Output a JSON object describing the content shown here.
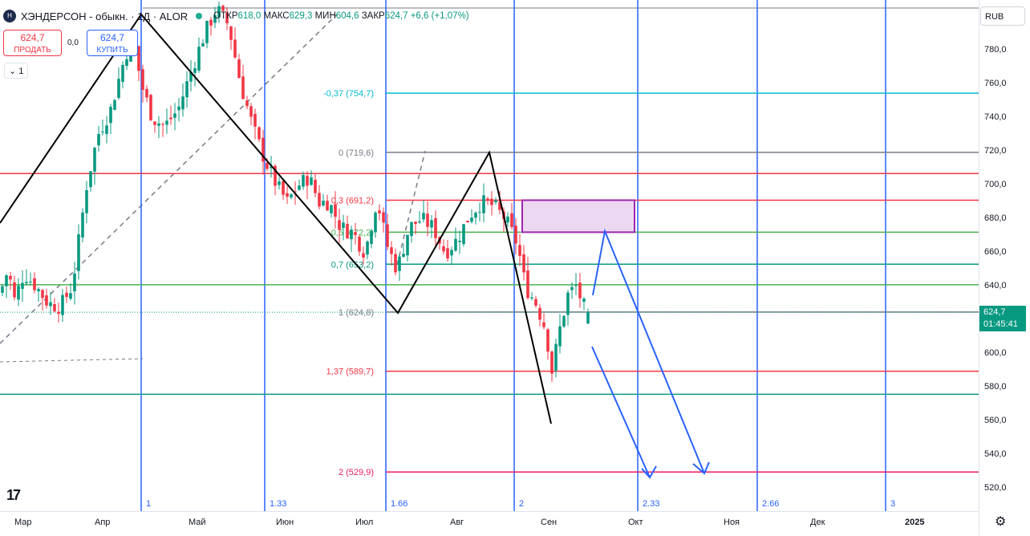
{
  "header": {
    "logo_text": "H",
    "title": "ХЭНДЕРСОН - обыкн. · 1Д · ALOR",
    "ohlc": [
      {
        "key": "ОТКР",
        "value": "618,0"
      },
      {
        "key": "МАКС",
        "value": "629,3"
      },
      {
        "key": "МИН",
        "value": "604,6"
      },
      {
        "key": "ЗАКР",
        "value": "624,7"
      }
    ],
    "change": "+6,6 (+1,07%)"
  },
  "trade": {
    "sell_price": "624,7",
    "sell_label": "ПРОДАТЬ",
    "spread": "0,0",
    "buy_price": "624,7",
    "buy_label": "КУПИТЬ",
    "collapse_label": "1"
  },
  "price_axis": {
    "currency": "RUB",
    "ticks": [
      "780,0",
      "760,0",
      "740,0",
      "720,0",
      "700,0",
      "680,0",
      "660,0",
      "640,0",
      "620,0",
      "600,0",
      "580,0",
      "560,0",
      "540,0",
      "520,0"
    ],
    "last_price": "624,7",
    "countdown": "01:45:41"
  },
  "time_axis": {
    "ticks": [
      "Мар",
      "Апр",
      "Май",
      "Июн",
      "Июл",
      "Авг",
      "Сен",
      "Окт",
      "Ноя",
      "Дек",
      "2025"
    ]
  },
  "chart_data": {
    "type": "candlestick",
    "ylim": [
      510,
      792
    ],
    "fib_levels": [
      {
        "label": "-0,37 (754,7)",
        "value": 754.7,
        "color": "#00bcd4"
      },
      {
        "label": "0 (719,6)",
        "value": 719.6,
        "color": "#787b86"
      },
      {
        "label": "0,3 (691,2)",
        "value": 691.2,
        "color": "#f23645"
      },
      {
        "label": "0,5 (672,2)",
        "value": 672.2,
        "color": "#4caf50"
      },
      {
        "label": "0,7 (653,2)",
        "value": 653.2,
        "color": "#089981"
      },
      {
        "label": "1 (624,8)",
        "value": 624.8,
        "color": "#787b86"
      },
      {
        "label": "1,37 (589,7)",
        "value": 589.7,
        "color": "#f23645"
      },
      {
        "label": "2 (529,9)",
        "value": 529.9,
        "color": "#e91e63"
      }
    ],
    "horizontal_lines": [
      {
        "value": 707,
        "color": "#f23645"
      },
      {
        "value": 641,
        "color": "#4caf50"
      },
      {
        "value": 576,
        "color": "#089981"
      }
    ],
    "fib_time_labels": [
      "1",
      "1.33",
      "1.66",
      "2",
      "2.33",
      "2.66",
      "3"
    ],
    "zone": {
      "top": 691.2,
      "bottom": 672.2,
      "color": "#9c27b0"
    },
    "last_close": 624.7,
    "colors": {
      "up": "#089981",
      "down": "#f23645",
      "time_lines": "#2962ff",
      "zigzag": "#000000",
      "forecast": "#2962ff"
    }
  }
}
